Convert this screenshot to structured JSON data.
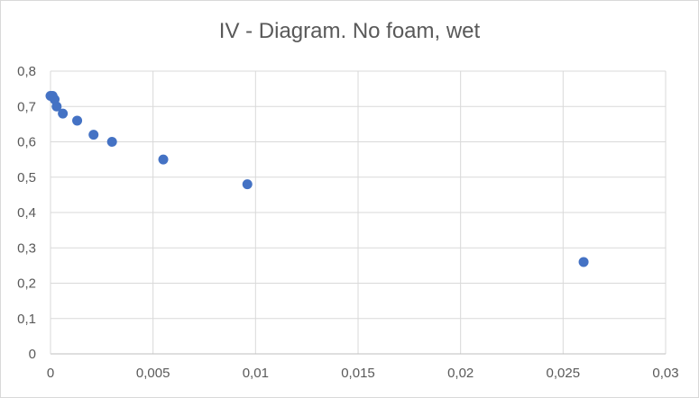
{
  "chart_data": {
    "type": "scatter",
    "title": "IV - Diagram. No foam, wet",
    "xlabel": "",
    "ylabel": "",
    "xlim": [
      0,
      0.03
    ],
    "ylim": [
      0,
      0.8
    ],
    "x_ticks": [
      "0",
      "0,005",
      "0,01",
      "0,015",
      "0,02",
      "0,025",
      "0,03"
    ],
    "y_ticks": [
      "0",
      "0,1",
      "0,2",
      "0,3",
      "0,4",
      "0,5",
      "0,6",
      "0,7",
      "0,8"
    ],
    "grid": true,
    "legend": "none",
    "marker_color": "#4472c4",
    "points": [
      {
        "x": 0.0,
        "y": 0.73
      },
      {
        "x": 0.0001,
        "y": 0.73
      },
      {
        "x": 0.0002,
        "y": 0.72
      },
      {
        "x": 0.0003,
        "y": 0.7
      },
      {
        "x": 0.0006,
        "y": 0.68
      },
      {
        "x": 0.0013,
        "y": 0.66
      },
      {
        "x": 0.0021,
        "y": 0.62
      },
      {
        "x": 0.003,
        "y": 0.6
      },
      {
        "x": 0.0055,
        "y": 0.55
      },
      {
        "x": 0.0096,
        "y": 0.48
      },
      {
        "x": 0.026,
        "y": 0.26
      }
    ]
  }
}
